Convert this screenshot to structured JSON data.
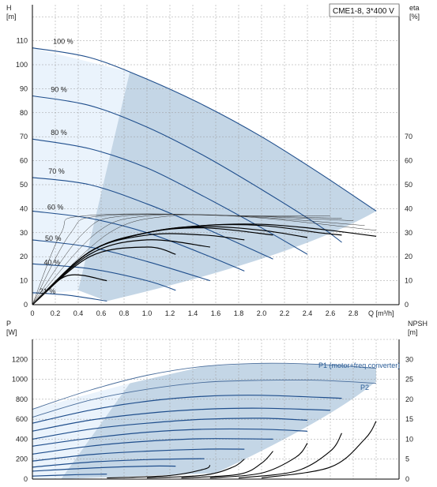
{
  "title": "CME1-8, 3*400 V",
  "colors": {
    "curve": "#1f4e8c",
    "curve_thin": "#4a6e9c",
    "range_fill": "#c4d6e6",
    "light_fill": "#eaf3fc",
    "grid": "#9a9a9a",
    "eta": "#000000",
    "eta_thin": "#333333"
  },
  "chart_data": [
    {
      "type": "line",
      "name": "head-curves",
      "xlabel": "Q [m³/h]",
      "ylabel_left_1": "H",
      "ylabel_left_2": "[m]",
      "ylabel_right_1": "eta",
      "ylabel_right_2": "[%]",
      "xlim": [
        0,
        3.2
      ],
      "ylim": [
        0,
        120
      ],
      "x_ticks": [
        "0",
        "0.2",
        "0.4",
        "0.6",
        "0.8",
        "1.0",
        "1.2",
        "1.4",
        "1.6",
        "1.8",
        "2.0",
        "2.2",
        "2.4",
        "2.6",
        "2.8",
        "Q"
      ],
      "y_ticks": [
        "0",
        "10",
        "20",
        "30",
        "40",
        "50",
        "60",
        "70",
        "80",
        "90",
        "100",
        "110"
      ],
      "y2_ticks": [
        "0",
        "10",
        "20",
        "30",
        "40",
        "50",
        "60",
        "70"
      ],
      "grid": true,
      "series": [
        {
          "name": "100 %",
          "x": [
            0,
            0.5,
            1.0,
            1.5,
            2.0,
            2.5,
            3.0
          ],
          "y": [
            107,
            103,
            94,
            83,
            70,
            55,
            39
          ]
        },
        {
          "name": "90 %",
          "x": [
            0,
            0.5,
            1.0,
            1.5,
            2.0,
            2.5,
            2.7
          ],
          "y": [
            87,
            83,
            74,
            62,
            48,
            33,
            26
          ]
        },
        {
          "name": "80 %",
          "x": [
            0,
            0.5,
            1.0,
            1.5,
            2.0,
            2.4
          ],
          "y": [
            69,
            65,
            57,
            45,
            32,
            21
          ]
        },
        {
          "name": "70 %",
          "x": [
            0,
            0.5,
            1.0,
            1.5,
            2.1
          ],
          "y": [
            53,
            50,
            42,
            32,
            19
          ]
        },
        {
          "name": "60 %",
          "x": [
            0,
            0.5,
            1.0,
            1.5,
            1.85
          ],
          "y": [
            39,
            36,
            30,
            21,
            14
          ]
        },
        {
          "name": "50 %",
          "x": [
            0,
            0.5,
            1.0,
            1.55
          ],
          "y": [
            27,
            24,
            18,
            10
          ]
        },
        {
          "name": "40 %",
          "x": [
            0,
            0.5,
            1.0,
            1.25
          ],
          "y": [
            17,
            15,
            10,
            6
          ]
        },
        {
          "name": "21 %",
          "x": [
            0,
            0.3,
            0.65
          ],
          "y": [
            5,
            4,
            1.5
          ]
        }
      ],
      "eta_series": [
        {
          "x": [
            0,
            0.5,
            1.0,
            1.5,
            2.0,
            2.5,
            3.0
          ],
          "y": [
            0,
            22,
            30,
            33,
            33.5,
            31.5,
            28.5
          ]
        },
        {
          "x": [
            0,
            0.5,
            1.0,
            1.5,
            2.0,
            2.5,
            2.7
          ],
          "y": [
            0,
            22,
            30,
            33,
            33,
            30,
            29
          ]
        },
        {
          "x": [
            0,
            0.5,
            1.0,
            1.5,
            2.0,
            2.4
          ],
          "y": [
            0,
            22,
            30,
            32.5,
            31,
            28
          ]
        },
        {
          "x": [
            0,
            0.5,
            1.0,
            1.5,
            2.1
          ],
          "y": [
            0,
            22,
            30,
            32,
            29
          ]
        },
        {
          "x": [
            0,
            0.5,
            1.0,
            1.5,
            1.85
          ],
          "y": [
            0,
            22,
            29,
            29,
            27
          ]
        },
        {
          "x": [
            0,
            0.5,
            1.0,
            1.55
          ],
          "y": [
            0,
            21,
            27,
            24
          ]
        },
        {
          "x": [
            0,
            0.5,
            1.0,
            1.25
          ],
          "y": [
            0,
            20,
            24,
            21
          ]
        },
        {
          "x": [
            0,
            0.3,
            0.65
          ],
          "y": [
            0,
            12,
            10
          ]
        }
      ]
    },
    {
      "type": "line",
      "name": "power-npsh-curves",
      "xlabel": "",
      "ylabel_left_1": "P",
      "ylabel_left_2": "[W]",
      "ylabel_right_1": "NPSH",
      "ylabel_right_2": "[m]",
      "xlim": [
        0,
        3.2
      ],
      "ylim": [
        0,
        1400
      ],
      "y_ticks": [
        "0",
        "200",
        "400",
        "600",
        "800",
        "1000",
        "1200"
      ],
      "y2_ticks": [
        "0",
        "5",
        "10",
        "15",
        "20",
        "25",
        "30"
      ],
      "grid": true,
      "series_labels": [
        "P1 (motor+freq.converter)",
        "P2"
      ],
      "series": [
        {
          "name": "P1 (motor+freq.converter)",
          "x": [
            0,
            0.5,
            1.0,
            1.5,
            2.0,
            2.5,
            3.0
          ],
          "y": [
            700,
            890,
            1040,
            1130,
            1160,
            1150,
            1110
          ]
        },
        {
          "name": "P2",
          "x": [
            0,
            0.5,
            1.0,
            1.5,
            2.0,
            2.5,
            3.0
          ],
          "y": [
            620,
            790,
            900,
            970,
            990,
            990,
            960
          ]
        },
        {
          "x": [
            0,
            0.5,
            1.0,
            1.5,
            2.0,
            2.7
          ],
          "y": [
            560,
            690,
            780,
            830,
            840,
            810
          ]
        },
        {
          "x": [
            0,
            0.5,
            1.0,
            1.5,
            2.0,
            2.6
          ],
          "y": [
            480,
            590,
            660,
            700,
            710,
            690
          ]
        },
        {
          "x": [
            0,
            0.5,
            1.0,
            1.5,
            2.0,
            2.4
          ],
          "y": [
            400,
            500,
            560,
            600,
            610,
            590
          ]
        },
        {
          "x": [
            0,
            0.5,
            1.0,
            1.5,
            2.0,
            2.4
          ],
          "y": [
            330,
            410,
            470,
            500,
            500,
            480
          ]
        },
        {
          "x": [
            0,
            0.5,
            1.0,
            1.5,
            2.1
          ],
          "y": [
            250,
            330,
            380,
            405,
            400
          ]
        },
        {
          "x": [
            0,
            0.5,
            1.0,
            1.5,
            1.85
          ],
          "y": [
            180,
            245,
            280,
            300,
            300
          ]
        },
        {
          "x": [
            0,
            0.5,
            1.0,
            1.5
          ],
          "y": [
            120,
            170,
            195,
            205
          ]
        },
        {
          "x": [
            0,
            0.5,
            1.0,
            1.25
          ],
          "y": [
            80,
            110,
            130,
            130
          ]
        },
        {
          "x": [
            0,
            0.4,
            0.65
          ],
          "y": [
            30,
            45,
            50
          ]
        }
      ],
      "npsh_series": [
        {
          "x": [
            0.65,
            1.2,
            1.5,
            1.55
          ],
          "y": [
            0.3,
            0.9,
            2.5,
            3.5
          ]
        },
        {
          "x": [
            1.0,
            1.5,
            1.75,
            1.85
          ],
          "y": [
            0.3,
            1.0,
            3.0,
            5.0
          ]
        },
        {
          "x": [
            1.3,
            1.8,
            2.0,
            2.1
          ],
          "y": [
            0.3,
            1.2,
            4.0,
            7.0
          ]
        },
        {
          "x": [
            1.55,
            2.0,
            2.3,
            2.4
          ],
          "y": [
            0.3,
            1.5,
            5.5,
            9.0
          ]
        },
        {
          "x": [
            1.8,
            2.3,
            2.6,
            2.7
          ],
          "y": [
            0.3,
            2.0,
            7.0,
            11.5
          ]
        },
        {
          "x": [
            2.0,
            2.6,
            2.9,
            3.0
          ],
          "y": [
            0.3,
            3.0,
            10.0,
            14.5
          ]
        }
      ]
    }
  ]
}
